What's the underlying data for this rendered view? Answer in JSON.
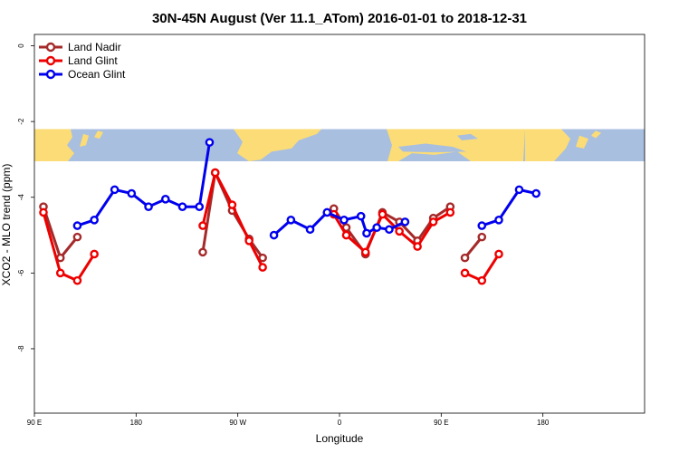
{
  "chart_data": {
    "type": "line",
    "title": "30N-45N August (Ver 11.1_ATom)   2016-01-01 to 2018-12-31",
    "xlabel": "Longitude",
    "ylabel": "XCO2 - MLO trend (ppm)",
    "xlim": [
      90,
      630
    ],
    "ylim": [
      -9.7,
      0.3
    ],
    "x_ticks": [
      {
        "value": 90,
        "label": "90 E"
      },
      {
        "value": 180,
        "label": "180"
      },
      {
        "value": 270,
        "label": "90 W"
      },
      {
        "value": 360,
        "label": "0"
      },
      {
        "value": 450,
        "label": "90 E"
      },
      {
        "value": 540,
        "label": "180"
      }
    ],
    "y_ticks": [
      {
        "value": 0,
        "label": "0"
      },
      {
        "value": -2,
        "label": "-2"
      },
      {
        "value": -4,
        "label": "-4"
      },
      {
        "value": -6,
        "label": "-6"
      },
      {
        "value": -8,
        "label": "-8"
      }
    ],
    "grid": false,
    "legend_position": "top-left",
    "map_band": {
      "y_top": -2.2,
      "y_bottom": -3.05,
      "ocean_color": "#a9bfe0",
      "land_color": "#fbdc76"
    },
    "series": [
      {
        "name": "Land Nadir",
        "color": "#a52a2a",
        "segments": [
          [
            [
              98,
              -4.25
            ],
            [
              113,
              -5.6
            ],
            [
              128,
              -5.05
            ]
          ],
          [
            [
              239,
              -5.45
            ],
            [
              250,
              -3.35
            ],
            [
              265,
              -4.35
            ],
            [
              280,
              -5.1
            ],
            [
              292,
              -5.6
            ]
          ],
          [
            [
              355,
              -4.3
            ],
            [
              366,
              -4.8
            ],
            [
              383,
              -5.5
            ],
            [
              398,
              -4.4
            ],
            [
              413,
              -4.65
            ],
            [
              429,
              -5.15
            ],
            [
              443,
              -4.55
            ],
            [
              458,
              -4.25
            ]
          ],
          [
            [
              471,
              -5.6
            ],
            [
              486,
              -5.05
            ]
          ]
        ]
      },
      {
        "name": "Land Glint",
        "color": "#ee0000",
        "segments": [
          [
            [
              98,
              -4.4
            ],
            [
              113,
              -6.0
            ],
            [
              128,
              -6.2
            ],
            [
              143,
              -5.5
            ]
          ],
          [
            [
              239,
              -4.75
            ],
            [
              250,
              -3.35
            ],
            [
              265,
              -4.2
            ],
            [
              280,
              -5.15
            ],
            [
              292,
              -5.85
            ]
          ],
          [
            [
              355,
              -4.45
            ],
            [
              366,
              -5.0
            ],
            [
              383,
              -5.45
            ],
            [
              398,
              -4.45
            ],
            [
              413,
              -4.9
            ],
            [
              429,
              -5.3
            ],
            [
              443,
              -4.65
            ],
            [
              458,
              -4.4
            ]
          ],
          [
            [
              471,
              -6.0
            ],
            [
              486,
              -6.2
            ],
            [
              501,
              -5.5
            ]
          ]
        ]
      },
      {
        "name": "Ocean Glint",
        "color": "#0000ee",
        "segments": [
          [
            [
              128,
              -4.75
            ],
            [
              143,
              -4.6
            ],
            [
              161,
              -3.8
            ],
            [
              176,
              -3.9
            ],
            [
              191,
              -4.25
            ],
            [
              206,
              -4.05
            ],
            [
              221,
              -4.25
            ],
            [
              236,
              -4.25
            ],
            [
              245,
              -2.55
            ]
          ],
          [
            [
              302,
              -5.0
            ],
            [
              317,
              -4.6
            ],
            [
              334,
              -4.85
            ],
            [
              349,
              -4.4
            ],
            [
              364,
              -4.6
            ],
            [
              379,
              -4.5
            ],
            [
              384,
              -4.95
            ],
            [
              393,
              -4.8
            ],
            [
              404,
              -4.85
            ],
            [
              418,
              -4.65
            ]
          ],
          [
            [
              486,
              -4.75
            ],
            [
              501,
              -4.6
            ],
            [
              519,
              -3.8
            ],
            [
              534,
              -3.9
            ]
          ]
        ]
      }
    ]
  }
}
